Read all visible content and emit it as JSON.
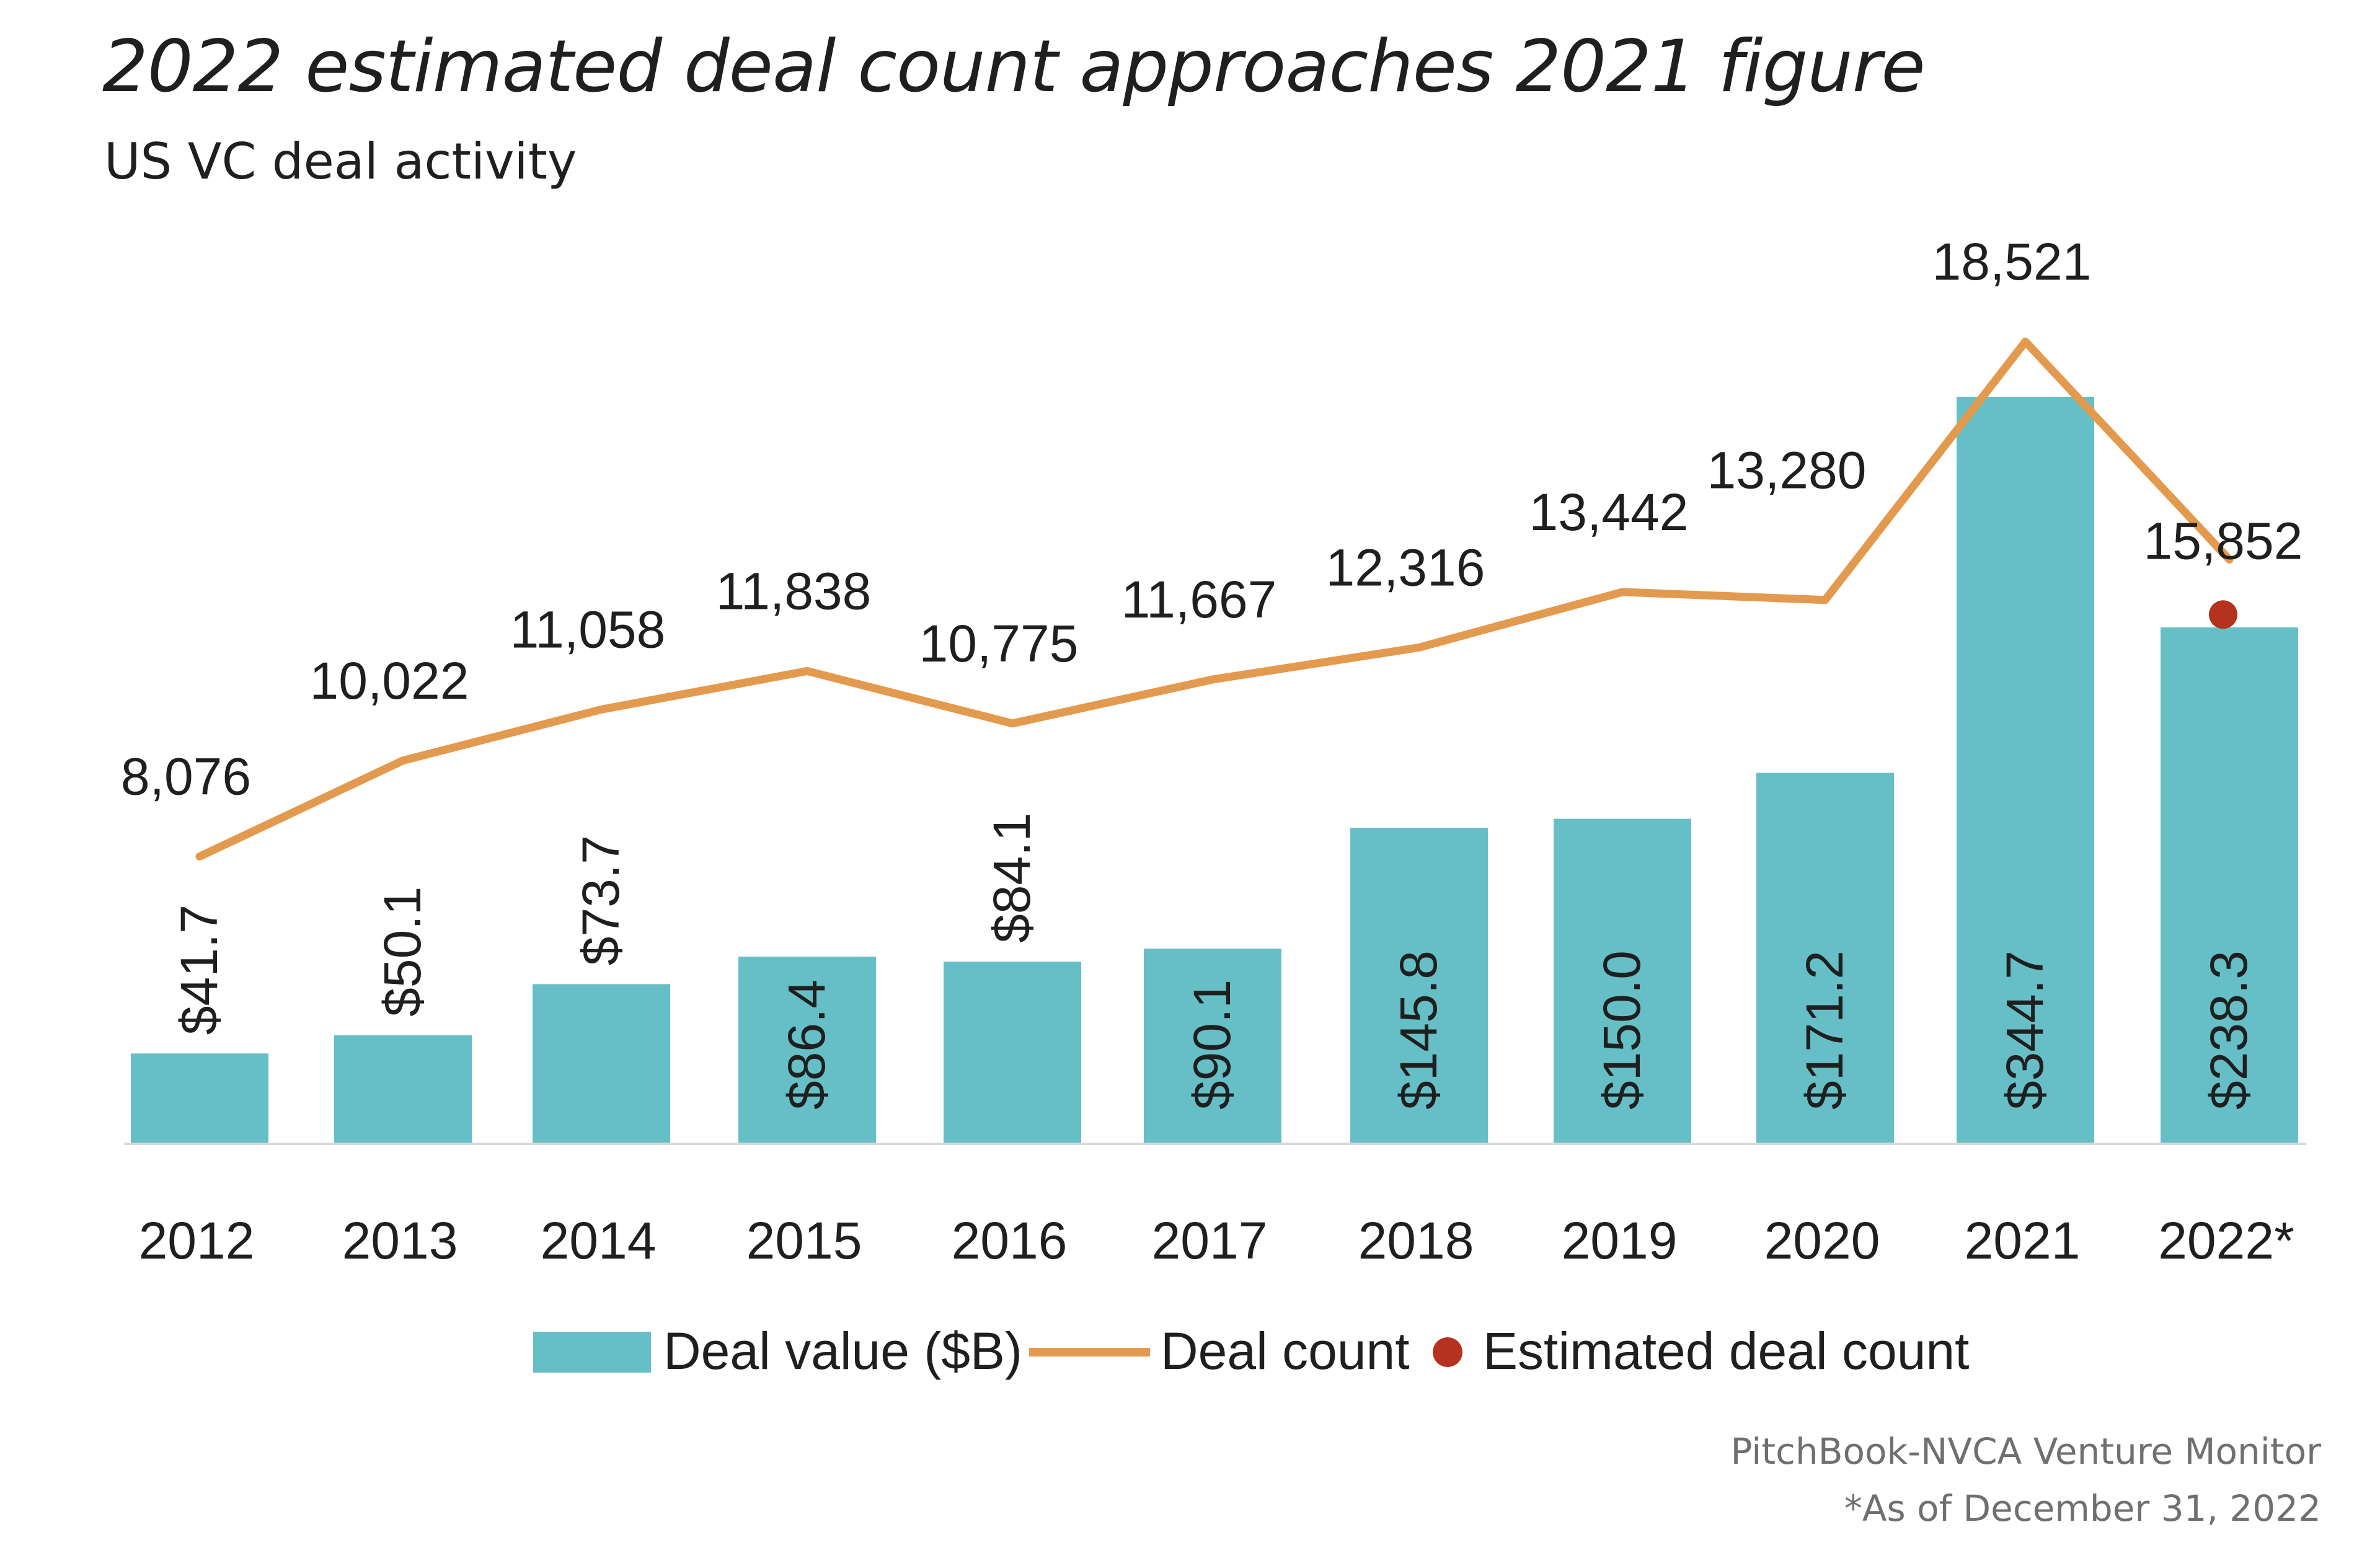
{
  "title": "2022 estimated deal count approaches 2021 figure",
  "subtitle": "US VC deal activity",
  "source": "PitchBook-NVCA Venture Monitor",
  "footnote": "*As of December 31, 2022",
  "colors": {
    "bar": "#66bfc6",
    "line": "#e39a4e",
    "estimate": "#b5331e",
    "text": "#1f1f1f"
  },
  "chart_data": {
    "type": "bar",
    "categories": [
      "2012",
      "2013",
      "2014",
      "2015",
      "2016",
      "2017",
      "2018",
      "2019",
      "2020",
      "2021",
      "2022*"
    ],
    "series": [
      {
        "name": "Deal value ($B)",
        "type": "bar",
        "values": [
          41.7,
          50.1,
          73.7,
          86.4,
          84.1,
          90.1,
          145.8,
          150.0,
          171.2,
          344.7,
          238.3
        ],
        "labels": [
          "$41.7",
          "$50.1",
          "$73.7",
          "$86.4",
          "$84.1",
          "$90.1",
          "$145.8",
          "$150.0",
          "$171.2",
          "$344.7",
          "$238.3"
        ]
      },
      {
        "name": "Deal count",
        "type": "line",
        "values": [
          8076,
          10022,
          11058,
          11838,
          10775,
          11667,
          12316,
          13442,
          13280,
          18521,
          14100
        ],
        "labels": [
          "8,076",
          "10,022",
          "11,058",
          "11,838",
          "10,775",
          "11,667",
          "12,316",
          "13,442",
          "13,280",
          "18,521",
          ""
        ]
      },
      {
        "name": "Estimated deal count",
        "type": "scatter",
        "category": "2022*",
        "value": 15852,
        "label": "15,852"
      }
    ],
    "legend": "bottom",
    "grid": false
  }
}
